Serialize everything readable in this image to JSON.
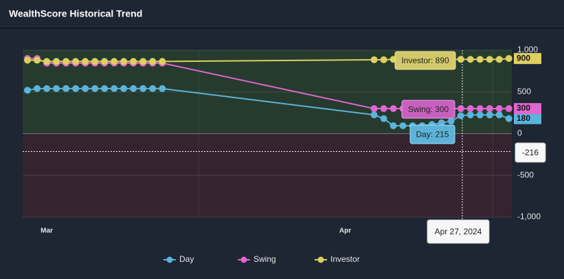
{
  "chart_data": {
    "type": "line",
    "title": "WealthScore Historical Trend",
    "x": [
      59,
      60,
      61,
      62,
      63,
      64,
      65,
      66,
      67,
      68,
      69,
      70,
      71,
      72,
      73,
      95,
      96,
      97,
      98,
      99,
      100,
      101,
      102,
      103,
      104,
      105,
      106,
      107,
      108,
      109
    ],
    "xlim": [
      58.5,
      109.3
    ],
    "xticks": [
      {
        "value": 61,
        "label": "Mar"
      },
      {
        "value": 92,
        "label": "Apr"
      }
    ],
    "ylim": [
      -1000,
      1000
    ],
    "yticks": [
      {
        "value": -1000,
        "label": "-1,000"
      },
      -500,
      0,
      500,
      {
        "value": 1000,
        "label": "1,000"
      }
    ],
    "grid": true,
    "legend": "bottom",
    "series": [
      {
        "name": "Day",
        "color": "#5ab4dc",
        "values": [
          520,
          540,
          540,
          540,
          540,
          540,
          540,
          540,
          540,
          540,
          540,
          540,
          540,
          540,
          540,
          225,
          180,
          95,
          95,
          95,
          95,
          110,
          130,
          150,
          215,
          225,
          225,
          225,
          225,
          180
        ]
      },
      {
        "name": "Swing",
        "color": "#e066d0",
        "values": [
          900,
          900,
          845,
          845,
          845,
          845,
          845,
          845,
          845,
          845,
          845,
          845,
          845,
          845,
          845,
          300,
          300,
          300,
          300,
          300,
          300,
          300,
          300,
          300,
          300,
          300,
          300,
          300,
          300,
          300
        ]
      },
      {
        "name": "Investor",
        "color": "#ddd060",
        "values": [
          880,
          880,
          865,
          865,
          865,
          865,
          865,
          865,
          865,
          865,
          865,
          865,
          865,
          865,
          865,
          885,
          885,
          890,
          890,
          890,
          890,
          890,
          890,
          890,
          890,
          890,
          890,
          890,
          890,
          900
        ]
      }
    ],
    "annotations": [
      "Investor: 890",
      "Swing: 300",
      "Day: 215",
      "Apr 27, 2024",
      "-216"
    ]
  }
}
